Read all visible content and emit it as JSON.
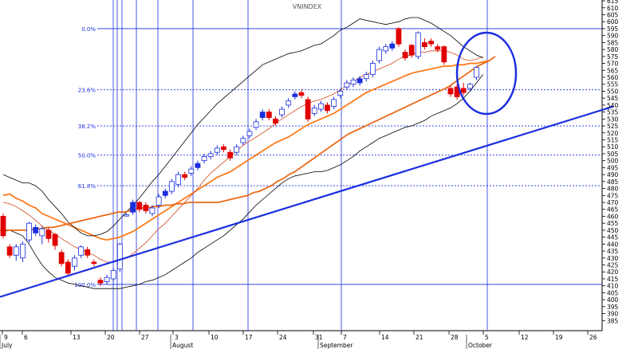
{
  "chart_data": {
    "type": "candlestick",
    "title": "VNINDEX",
    "ylim": [
      380,
      618
    ],
    "y_ticks": [
      385,
      390,
      395,
      400,
      405,
      410,
      415,
      420,
      425,
      430,
      435,
      440,
      445,
      450,
      455,
      460,
      465,
      470,
      475,
      480,
      485,
      490,
      495,
      500,
      505,
      510,
      515,
      520,
      525,
      530,
      535,
      540,
      545,
      550,
      555,
      560,
      565,
      570,
      575,
      580,
      585,
      590,
      595,
      600,
      605,
      610,
      615
    ],
    "x_day_labels": [
      "9",
      "6",
      "13",
      "20",
      "27",
      "3",
      "10",
      "17",
      "24",
      "31",
      "7",
      "14",
      "21",
      "28",
      "5",
      "12",
      "19",
      "26"
    ],
    "x_month_labels": [
      "July",
      "August",
      "September",
      "October"
    ],
    "fib_levels": [
      {
        "label": "0.0%",
        "value": 595
      },
      {
        "label": "23.6%",
        "value": 551
      },
      {
        "label": "38.2%",
        "value": 525
      },
      {
        "label": "50.0%",
        "value": 504
      },
      {
        "label": "61.8%",
        "value": 482
      },
      {
        "label": "100.0%",
        "value": 411
      }
    ],
    "candles": [
      {
        "o": 460,
        "c": 446,
        "h": 462,
        "l": 444
      },
      {
        "o": 438,
        "c": 432,
        "h": 440,
        "l": 430
      },
      {
        "o": 432,
        "c": 438,
        "h": 440,
        "l": 428
      },
      {
        "o": 430,
        "c": 440,
        "h": 442,
        "l": 427
      },
      {
        "o": 443,
        "c": 455,
        "h": 456,
        "l": 441
      },
      {
        "o": 448,
        "c": 452,
        "h": 454,
        "l": 446
      },
      {
        "o": 446,
        "c": 451,
        "h": 453,
        "l": 440
      },
      {
        "o": 450,
        "c": 444,
        "h": 452,
        "l": 441
      },
      {
        "o": 447,
        "c": 439,
        "h": 448,
        "l": 436
      },
      {
        "o": 434,
        "c": 426,
        "h": 436,
        "l": 424
      },
      {
        "o": 427,
        "c": 419,
        "h": 429,
        "l": 417
      },
      {
        "o": 424,
        "c": 430,
        "h": 432,
        "l": 421
      },
      {
        "o": 432,
        "c": 438,
        "h": 439,
        "l": 430
      },
      {
        "o": 436,
        "c": 432,
        "h": 438,
        "l": 430
      },
      {
        "o": 427,
        "c": 426,
        "h": 429,
        "l": 424
      },
      {
        "o": 414,
        "c": 412,
        "h": 416,
        "l": 410
      },
      {
        "o": 413,
        "c": 416,
        "h": 418,
        "l": 411
      },
      {
        "o": 415,
        "c": 421,
        "h": 423,
        "l": 413
      },
      {
        "o": 422,
        "c": 440,
        "h": 441,
        "l": 420
      },
      {
        "o": 461,
        "c": 461,
        "h": 462,
        "l": 460
      },
      {
        "o": 463,
        "c": 470,
        "h": 472,
        "l": 461
      },
      {
        "o": 470,
        "c": 465,
        "h": 471,
        "l": 463
      },
      {
        "o": 468,
        "c": 464,
        "h": 470,
        "l": 462
      },
      {
        "o": 462,
        "c": 466,
        "h": 468,
        "l": 460
      },
      {
        "o": 468,
        "c": 474,
        "h": 476,
        "l": 466
      },
      {
        "o": 475,
        "c": 478,
        "h": 480,
        "l": 473
      },
      {
        "o": 478,
        "c": 485,
        "h": 487,
        "l": 476
      },
      {
        "o": 483,
        "c": 490,
        "h": 492,
        "l": 481
      },
      {
        "o": 490,
        "c": 488,
        "h": 492,
        "l": 486
      },
      {
        "o": 491,
        "c": 494,
        "h": 496,
        "l": 489
      },
      {
        "o": 495,
        "c": 498,
        "h": 500,
        "l": 493
      },
      {
        "o": 500,
        "c": 503,
        "h": 505,
        "l": 498
      },
      {
        "o": 503,
        "c": 505,
        "h": 507,
        "l": 501
      },
      {
        "o": 506,
        "c": 509,
        "h": 511,
        "l": 504
      },
      {
        "o": 510,
        "c": 508,
        "h": 512,
        "l": 506
      },
      {
        "o": 506,
        "c": 502,
        "h": 508,
        "l": 500
      },
      {
        "o": 506,
        "c": 510,
        "h": 512,
        "l": 504
      },
      {
        "o": 513,
        "c": 516,
        "h": 518,
        "l": 511
      },
      {
        "o": 518,
        "c": 521,
        "h": 523,
        "l": 516
      },
      {
        "o": 524,
        "c": 528,
        "h": 530,
        "l": 522
      },
      {
        "o": 531,
        "c": 535,
        "h": 537,
        "l": 529
      },
      {
        "o": 535,
        "c": 531,
        "h": 537,
        "l": 529
      },
      {
        "o": 530,
        "c": 527,
        "h": 532,
        "l": 525
      },
      {
        "o": 533,
        "c": 537,
        "h": 539,
        "l": 531
      },
      {
        "o": 540,
        "c": 543,
        "h": 545,
        "l": 538
      },
      {
        "o": 546,
        "c": 548,
        "h": 550,
        "l": 544
      },
      {
        "o": 549,
        "c": 547,
        "h": 551,
        "l": 545
      },
      {
        "o": 544,
        "c": 530,
        "h": 546,
        "l": 528
      },
      {
        "o": 534,
        "c": 538,
        "h": 540,
        "l": 532
      },
      {
        "o": 537,
        "c": 541,
        "h": 543,
        "l": 535
      },
      {
        "o": 540,
        "c": 536,
        "h": 542,
        "l": 534
      },
      {
        "o": 539,
        "c": 544,
        "h": 546,
        "l": 537
      },
      {
        "o": 547,
        "c": 550,
        "h": 552,
        "l": 545
      },
      {
        "o": 553,
        "c": 556,
        "h": 558,
        "l": 551
      },
      {
        "o": 555,
        "c": 558,
        "h": 560,
        "l": 553
      },
      {
        "o": 556,
        "c": 559,
        "h": 561,
        "l": 554
      },
      {
        "o": 559,
        "c": 562,
        "h": 564,
        "l": 557
      },
      {
        "o": 562,
        "c": 570,
        "h": 572,
        "l": 560
      },
      {
        "o": 572,
        "c": 580,
        "h": 582,
        "l": 570
      },
      {
        "o": 579,
        "c": 582,
        "h": 584,
        "l": 577
      },
      {
        "o": 581,
        "c": 584,
        "h": 586,
        "l": 579
      },
      {
        "o": 595,
        "c": 584,
        "h": 596,
        "l": 582
      },
      {
        "o": 578,
        "c": 574,
        "h": 580,
        "l": 572
      },
      {
        "o": 583,
        "c": 576,
        "h": 584,
        "l": 574
      },
      {
        "o": 575,
        "c": 592,
        "h": 593,
        "l": 573
      },
      {
        "o": 585,
        "c": 582,
        "h": 588,
        "l": 580
      },
      {
        "o": 586,
        "c": 584,
        "h": 588,
        "l": 582
      },
      {
        "o": 582,
        "c": 580,
        "h": 584,
        "l": 578
      },
      {
        "o": 582,
        "c": 571,
        "h": 583,
        "l": 569
      },
      {
        "o": 552,
        "c": 548,
        "h": 554,
        "l": 546
      },
      {
        "o": 553,
        "c": 546,
        "h": 555,
        "l": 544
      },
      {
        "o": 552,
        "c": 549,
        "h": 556,
        "l": 547
      },
      {
        "o": 552,
        "c": 555,
        "h": 556,
        "l": 550
      },
      {
        "o": 560,
        "c": 567,
        "h": 568,
        "l": 558
      }
    ],
    "series": [
      {
        "values": [
          475,
          476,
          473,
          471,
          468,
          466,
          462,
          460,
          458,
          456,
          454,
          452,
          450,
          448,
          446,
          444,
          443,
          444,
          445,
          447,
          449,
          452,
          455,
          458,
          461,
          464,
          467,
          470,
          473,
          476,
          479,
          482,
          485,
          488,
          490,
          492,
          495,
          498,
          501,
          504,
          507,
          510,
          513,
          515,
          517,
          520,
          523,
          526,
          528,
          530,
          532,
          534,
          537,
          540,
          543,
          546,
          549,
          551,
          553,
          555,
          557,
          559,
          561,
          563,
          564,
          565,
          566,
          567,
          568,
          568,
          569,
          569,
          570,
          570,
          571,
          572
        ]
      },
      {
        "values": [
          470,
          469,
          467,
          464,
          461,
          457,
          453,
          450,
          447,
          444,
          441,
          438,
          436,
          434,
          432,
          429,
          427,
          427,
          428,
          430,
          433,
          437,
          441,
          446,
          451,
          455,
          460,
          465,
          470,
          475,
          480,
          486,
          491,
          495,
          499,
          503,
          507,
          511,
          514,
          517,
          520,
          523,
          527,
          530,
          533,
          536,
          539,
          541,
          543,
          544,
          546,
          548,
          551,
          554,
          557,
          560,
          562,
          564,
          566,
          568,
          570,
          573,
          575,
          576,
          578,
          578,
          579,
          579,
          579,
          578,
          576,
          573,
          572,
          573,
          575
        ]
      },
      {
        "values": [
          490,
          488,
          486,
          484,
          484,
          482,
          478,
          472,
          467,
          462,
          456,
          452,
          448,
          446,
          446,
          447,
          449,
          453,
          458,
          463,
          468,
          473,
          479,
          485,
          490,
          496,
          502,
          508,
          514,
          520,
          526,
          531,
          536,
          541,
          545,
          549,
          553,
          557,
          561,
          565,
          569,
          571,
          573,
          575,
          577,
          578,
          579,
          581,
          583,
          584,
          587,
          590,
          594,
          596,
          599,
          602,
          601,
          600,
          599,
          598,
          599,
          600,
          602,
          603,
          603,
          601,
          599,
          596,
          593,
          590,
          586,
          582,
          579,
          576,
          574
        ]
      },
      {
        "values": [
          449,
          450,
          448,
          446,
          440,
          432,
          425,
          420,
          416,
          414,
          412,
          411,
          410,
          409,
          408,
          408,
          408,
          408,
          408,
          409,
          410,
          411,
          413,
          414,
          416,
          418,
          421,
          424,
          427,
          430,
          434,
          437,
          440,
          443,
          446,
          450,
          454,
          458,
          463,
          468,
          472,
          476,
          480,
          484,
          487,
          489,
          490,
          491,
          492,
          492,
          493,
          495,
          497,
          500,
          503,
          507,
          510,
          513,
          516,
          518,
          520,
          522,
          524,
          525,
          527,
          529,
          532,
          534,
          536,
          538,
          541,
          545,
          550,
          556,
          562
        ]
      },
      {
        "values": [
          450,
          450,
          450,
          450,
          450,
          450,
          451,
          451,
          452,
          452,
          453,
          454,
          455,
          456,
          457,
          458,
          459,
          460,
          461,
          462,
          463,
          463,
          464,
          465,
          466,
          466,
          467,
          467,
          468,
          468,
          469,
          469,
          470,
          470,
          470,
          470,
          470,
          470,
          471,
          472,
          473,
          474,
          475,
          477,
          478,
          480,
          482,
          485,
          487,
          490,
          492,
          495,
          498,
          501,
          504,
          507,
          510,
          513,
          516,
          519,
          521,
          523,
          525,
          527,
          529,
          531,
          533,
          535,
          537,
          539,
          541,
          543,
          545,
          547,
          549,
          551,
          553,
          556,
          559,
          562,
          565,
          568,
          570,
          572,
          575
        ]
      }
    ],
    "trend_line": {
      "x": [
        0,
        769
      ],
      "y": [
        402,
        539
      ]
    }
  }
}
